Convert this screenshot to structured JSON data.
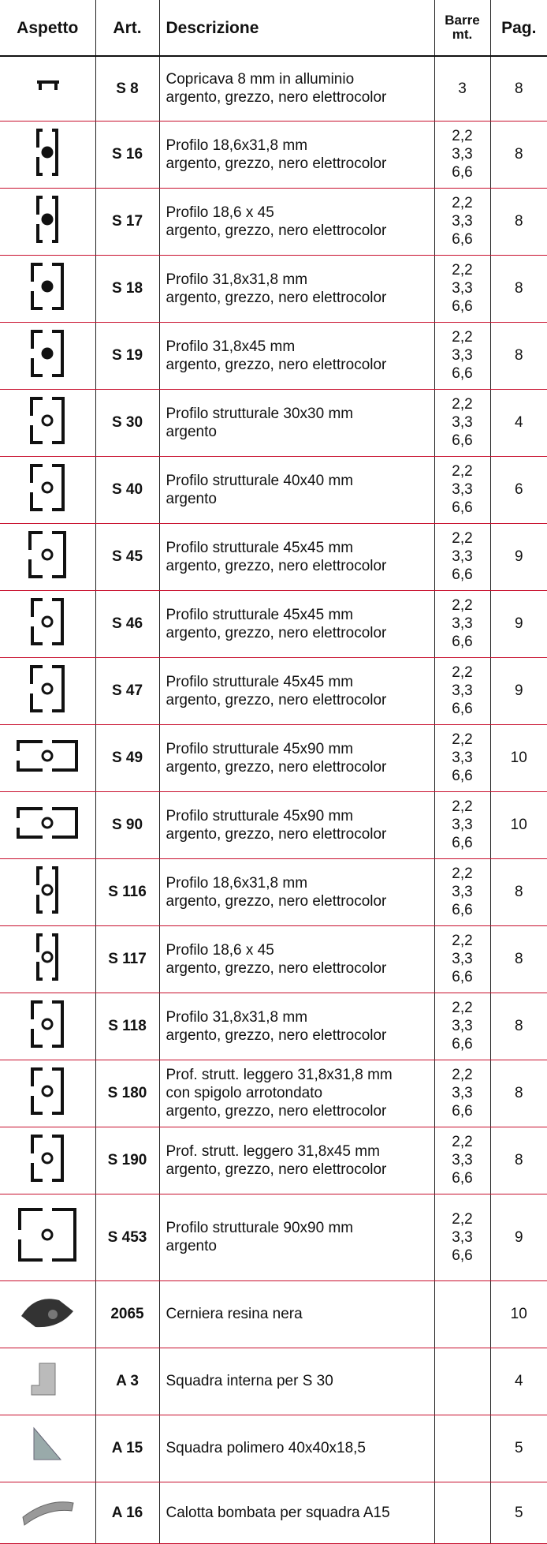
{
  "table": {
    "header": [
      "Aspetto",
      "Art.",
      [
        "Barre",
        "mt."
      ],
      "Pag."
    ],
    "header_desc": "Descrizione",
    "rows": [
      {
        "art": "S 8",
        "desc": [
          "Copricava 8 mm in alluminio",
          "argento, grezzo, nero elettrocolor"
        ],
        "barre": [
          "3"
        ],
        "pag": 8
      },
      {
        "art": "S 16",
        "desc": [
          "Profilo 18,6x31,8 mm",
          "argento, grezzo, nero elettrocolor"
        ],
        "barre": [
          "2,2",
          "3,3",
          "6,6"
        ],
        "pag": 8
      },
      {
        "art": "S 17",
        "desc": [
          "Profilo 18,6 x 45",
          "argento, grezzo, nero elettrocolor"
        ],
        "barre": [
          "2,2",
          "3,3",
          "6,6"
        ],
        "pag": 8
      },
      {
        "art": "S 18",
        "desc": [
          "Profilo 31,8x31,8 mm",
          "argento, grezzo, nero elettrocolor"
        ],
        "barre": [
          "2,2",
          "3,3",
          "6,6"
        ],
        "pag": 8
      },
      {
        "art": "S 19",
        "desc": [
          "Profilo 31,8x45 mm",
          "argento, grezzo, nero elettrocolor"
        ],
        "barre": [
          "2,2",
          "3,3",
          "6,6"
        ],
        "pag": 8
      },
      {
        "art": "S 30",
        "desc": [
          "Profilo strutturale 30x30 mm",
          "argento"
        ],
        "barre": [
          "2,2",
          "3,3",
          "6,6"
        ],
        "pag": 4
      },
      {
        "art": "S 40",
        "desc": [
          "Profilo strutturale 40x40 mm",
          "argento"
        ],
        "barre": [
          "2,2",
          "3,3",
          "6,6"
        ],
        "pag": 6
      },
      {
        "art": "S 45",
        "desc": [
          "Profilo strutturale 45x45 mm",
          "argento, grezzo, nero elettrocolor"
        ],
        "barre": [
          "2,2",
          "3,3",
          "6,6"
        ],
        "pag": 9
      },
      {
        "art": "S 46",
        "desc": [
          "Profilo strutturale 45x45 mm",
          "argento, grezzo, nero elettrocolor"
        ],
        "barre": [
          "2,2",
          "3,3",
          "6,6"
        ],
        "pag": 9
      },
      {
        "art": "S 47",
        "desc": [
          "Profilo strutturale 45x45 mm",
          "argento, grezzo, nero elettrocolor"
        ],
        "barre": [
          "2,2",
          "3,3",
          "6,6"
        ],
        "pag": 9
      },
      {
        "art": "S 49",
        "desc": [
          "Profilo strutturale 45x90 mm",
          "argento, grezzo, nero elettrocolor"
        ],
        "barre": [
          "2,2",
          "3,3",
          "6,6"
        ],
        "pag": 10
      },
      {
        "art": "S 90",
        "desc": [
          "Profilo strutturale 45x90 mm",
          "argento, grezzo, nero elettrocolor"
        ],
        "barre": [
          "2,2",
          "3,3",
          "6,6"
        ],
        "pag": 10
      },
      {
        "art": "S 116",
        "desc": [
          "Profilo 18,6x31,8 mm",
          "argento, grezzo, nero elettrocolor"
        ],
        "barre": [
          "2,2",
          "3,3",
          "6,6"
        ],
        "pag": 8
      },
      {
        "art": "S 117",
        "desc": [
          "Profilo 18,6 x 45",
          "argento, grezzo, nero elettrocolor"
        ],
        "barre": [
          "2,2",
          "3,3",
          "6,6"
        ],
        "pag": 8
      },
      {
        "art": "S 118",
        "desc": [
          "Profilo 31,8x31,8 mm",
          "argento, grezzo, nero elettrocolor"
        ],
        "barre": [
          "2,2",
          "3,3",
          "6,6"
        ],
        "pag": 8
      },
      {
        "art": "S 180",
        "desc": [
          "Prof. strutt. leggero 31,8x31,8 mm",
          "con spigolo arrotondato",
          "argento, grezzo, nero elettrocolor"
        ],
        "barre": [
          "2,2",
          "3,3",
          "6,6"
        ],
        "pag": 8
      },
      {
        "art": "S 190",
        "desc": [
          "Prof. strutt. leggero 31,8x45 mm",
          "argento, grezzo, nero elettrocolor"
        ],
        "barre": [
          "2,2",
          "3,3",
          "6,6"
        ],
        "pag": 8
      },
      {
        "art": "S 453",
        "desc": [
          "Profilo strutturale 90x90 mm",
          "argento"
        ],
        "barre": [
          "2,2",
          "3,3",
          "6,6"
        ],
        "pag": 9
      },
      {
        "art": "2065",
        "desc": [
          "Cerniera resina nera"
        ],
        "barre": [],
        "pag": 10
      },
      {
        "art": "A 3",
        "desc": [
          "Squadra interna per S 30"
        ],
        "barre": [],
        "pag": 4
      },
      {
        "art": "A 15",
        "desc": [
          "Squadra polimero 40x40x18,5"
        ],
        "barre": [],
        "pag": 5
      },
      {
        "art": "A 16",
        "desc": [
          "Calotta bombata per squadra A15"
        ],
        "barre": [],
        "pag": 5
      }
    ]
  }
}
